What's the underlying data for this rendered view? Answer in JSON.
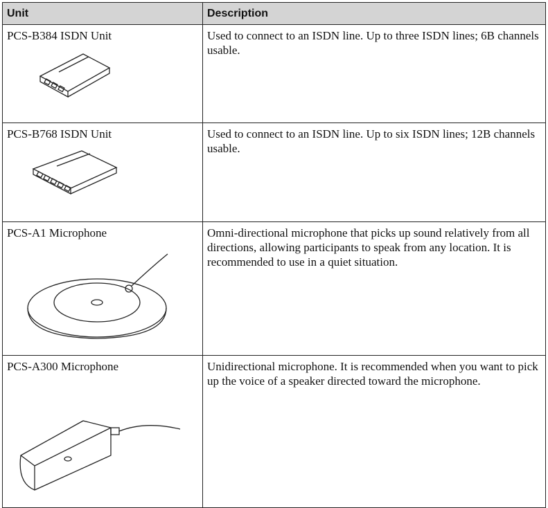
{
  "table": {
    "header": [
      "Unit",
      "Description"
    ],
    "rows": [
      [
        "PCS-B384 ISDN Unit",
        "Used to connect to an ISDN line. Up to three ISDN lines; 6B channels usable."
      ],
      [
        "PCS-B768 ISDN Unit",
        "Used to connect to an ISDN line. Up to six ISDN lines; 12B channels usable."
      ],
      [
        "PCS-A1 Microphone",
        "Omni-directional microphone that picks up sound relatively from all directions, allowing participants to speak from any location. It is recommended to use in a quiet situation."
      ],
      [
        "PCS-A300 Microphone",
        "Unidirectional microphone. It is recommended when you want to pick up the voice of a speaker directed toward the microphone."
      ]
    ]
  }
}
